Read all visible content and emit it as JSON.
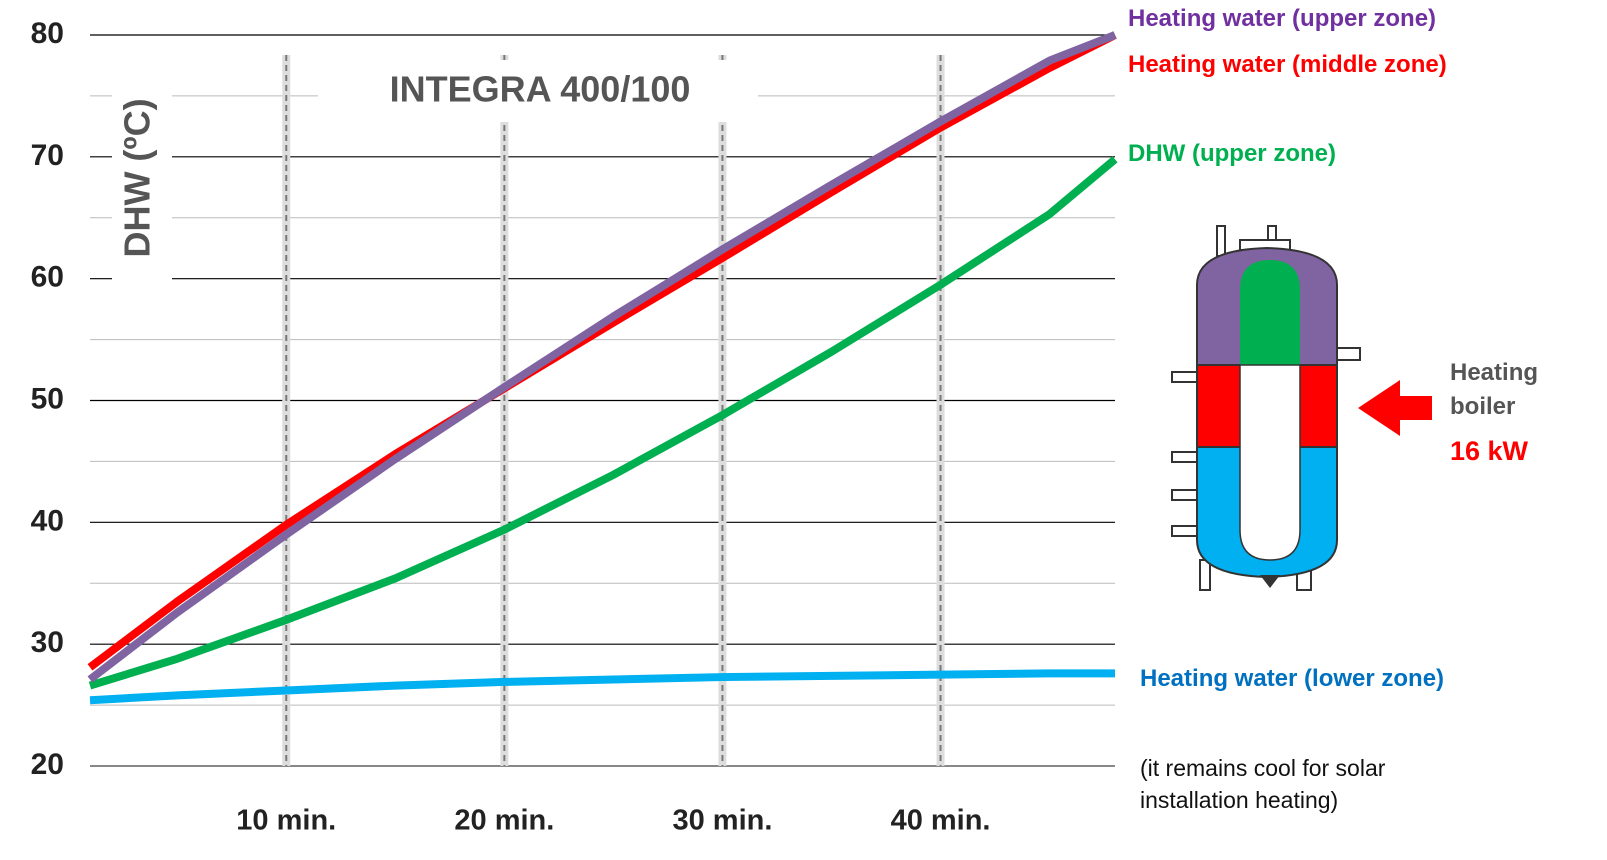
{
  "chart_data": {
    "type": "line",
    "title": "INTEGRA 400/100",
    "y_label": "DHW (ºC)",
    "x": [
      1,
      5,
      10,
      15,
      20,
      25,
      30,
      35,
      40,
      45,
      48
    ],
    "xlim": [
      1,
      48
    ],
    "xticks": [
      {
        "value": 10,
        "label": "10 min."
      },
      {
        "value": 20,
        "label": "20 min."
      },
      {
        "value": 30,
        "label": "30 min."
      },
      {
        "value": 40,
        "label": "40 min."
      }
    ],
    "ylim": [
      20,
      80
    ],
    "yticks": [
      20,
      30,
      40,
      50,
      60,
      70,
      80
    ],
    "minor_yticks": [
      25,
      35,
      45,
      55,
      65,
      75
    ],
    "grid": true,
    "series": [
      {
        "name": "Heating water (upper zone)",
        "color": "#8064a2",
        "label_color": "#7030a0",
        "values": [
          27.1,
          32.6,
          39.0,
          45.2,
          51.1,
          56.9,
          62.4,
          67.7,
          72.9,
          77.9,
          80
        ]
      },
      {
        "name": "Heating water (middle zone)",
        "color": "#ff0000",
        "label_color": "#ff0000",
        "values": [
          28.1,
          33.5,
          39.8,
          45.6,
          51.0,
          56.4,
          61.7,
          67.1,
          72.4,
          77.3,
          80
        ]
      },
      {
        "name": "DHW (upper zone)",
        "color": "#00b050",
        "label_color": "#00b050",
        "values": [
          26.6,
          28.8,
          32.0,
          35.4,
          39.4,
          43.9,
          48.8,
          54.0,
          59.5,
          65.3,
          69.8
        ]
      },
      {
        "name": "Heating water (lower zone)",
        "color": "#00b0f0",
        "label_color": "#0070c0",
        "values": [
          25.4,
          25.8,
          26.2,
          26.6,
          26.9,
          27.1,
          27.3,
          27.4,
          27.5,
          27.6,
          27.6
        ]
      }
    ],
    "annotations": {
      "lower_zone_note": "(it remains cool for solar installation heating)",
      "boiler": "Heating boiler",
      "power": "16 kW"
    }
  }
}
